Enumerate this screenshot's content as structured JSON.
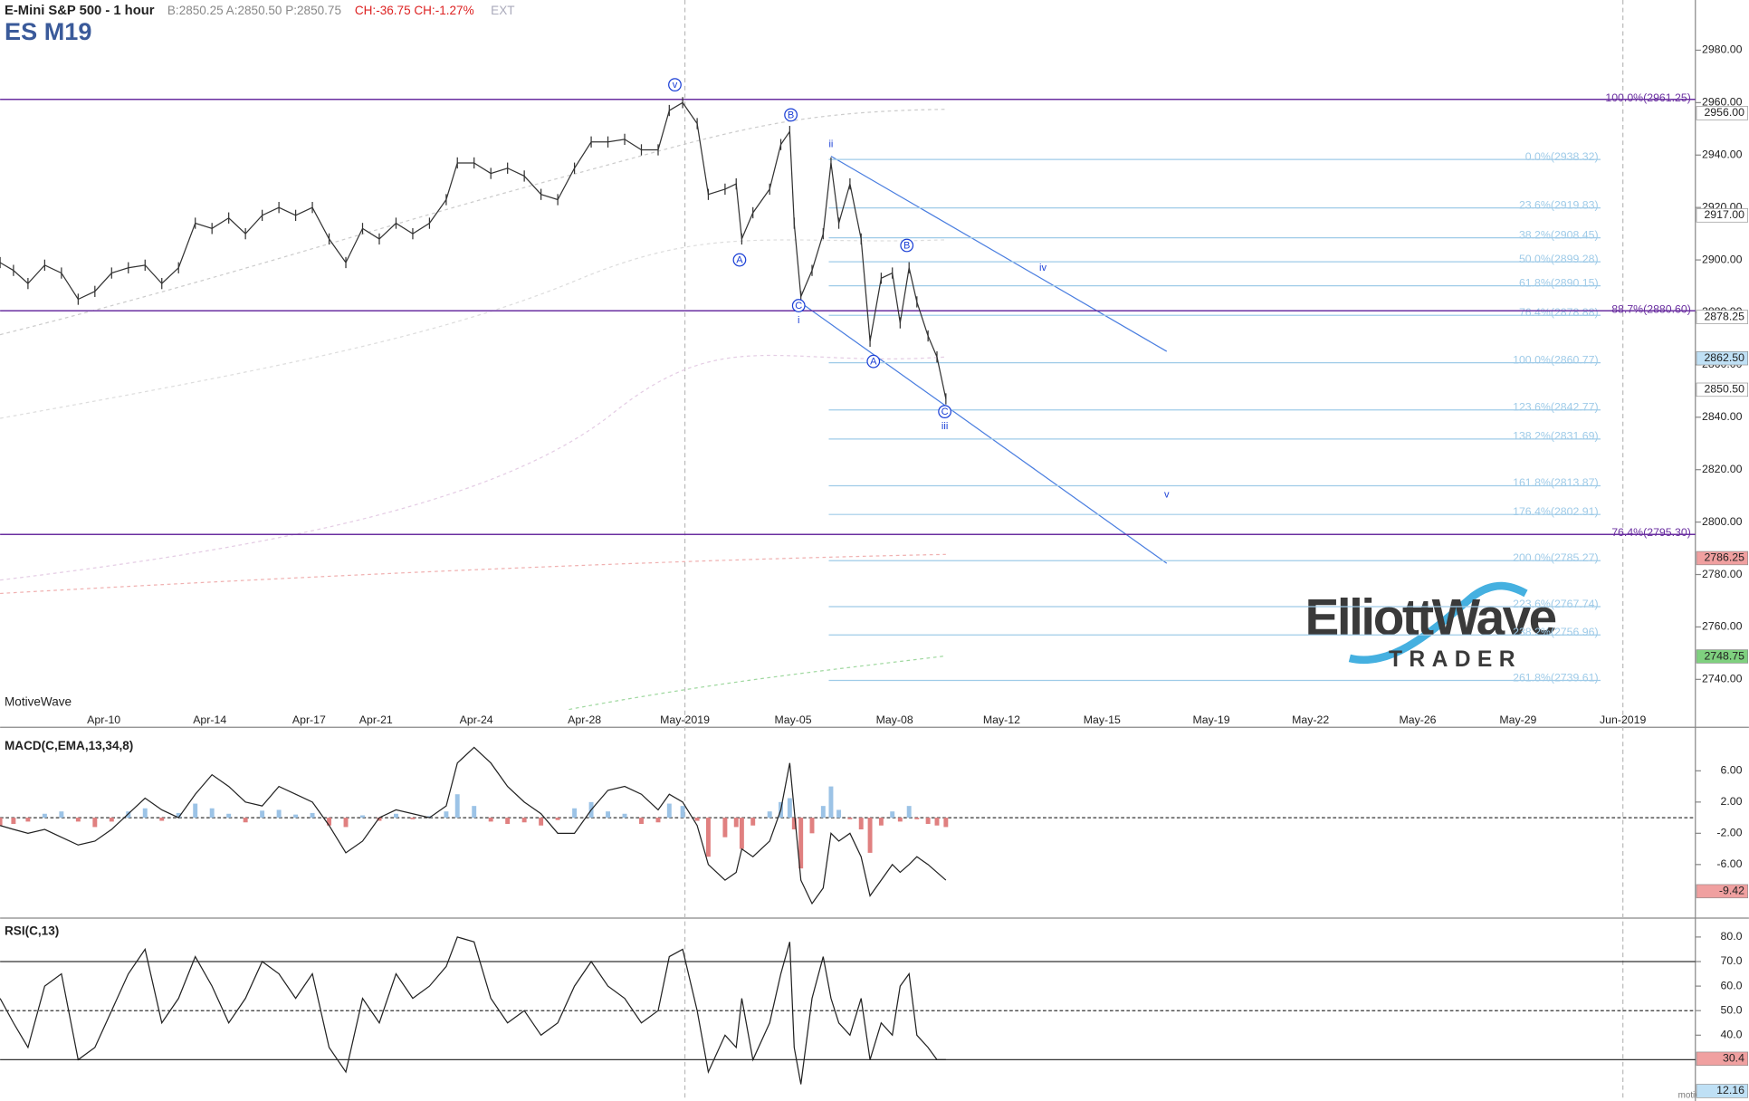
{
  "header": {
    "symbol_desc": "E-Mini S&P 500 - 1 hour",
    "quote": "B:2850.25 A:2850.50 P:2850.75",
    "change": "CH:-36.75 CH:-1.27%",
    "ext": "EXT",
    "ticker": "ES M19",
    "watermark": "MotiveWave",
    "footer": "motivewave.com",
    "logo_main": "ElliottWave",
    "logo_sub": "TRADER"
  },
  "chart_data": [
    {
      "type": "price",
      "color": "#333333",
      "x_tick_labels": [
        "Apr-10",
        "Apr-14",
        "Apr-17",
        "Apr-21",
        "Apr-24",
        "Apr-28",
        "May-2019",
        "May-05",
        "May-08",
        "May-12",
        "May-15",
        "May-19",
        "May-22",
        "May-26",
        "May-29",
        "Jun-2019"
      ],
      "ylim": [
        2728.1,
        2999.15
      ],
      "yticks": [
        {
          "value": 2740,
          "label": "2740.00"
        },
        {
          "value": 2760,
          "label": "2760.00"
        },
        {
          "value": 2780,
          "label": "2780.00"
        },
        {
          "value": 2800,
          "label": "2800.00"
        },
        {
          "value": 2820,
          "label": "2820.00"
        },
        {
          "value": 2840,
          "label": "2840.00"
        },
        {
          "value": 2860,
          "label": "2860.00"
        },
        {
          "value": 2880,
          "label": "2880.00"
        },
        {
          "value": 2900,
          "label": "2900.00"
        },
        {
          "value": 2920,
          "label": "2920.00"
        },
        {
          "value": 2940,
          "label": "2940.00"
        },
        {
          "value": 2960,
          "label": "2960.00"
        },
        {
          "value": 2980,
          "label": "2980.00"
        }
      ],
      "values": [
        2899,
        2896,
        2891,
        2898,
        2895,
        2885,
        2888,
        2895,
        2897,
        2898,
        2891,
        2897,
        2914,
        2912,
        2916,
        2910,
        2917,
        2920,
        2917,
        2920,
        2908,
        2899,
        2912,
        2908,
        2914,
        2910,
        2914,
        2923,
        2937,
        2937,
        2933,
        2935,
        2932,
        2925,
        2923,
        2935,
        2945,
        2945,
        2946,
        2942,
        2942,
        2957,
        2960,
        2952,
        2925,
        2927,
        2929,
        2908,
        2918,
        2927,
        2944,
        2949,
        2914,
        2886,
        2896,
        2910,
        2937,
        2914,
        2929,
        2908,
        2869,
        2893,
        2895,
        2876,
        2897,
        2884,
        2871,
        2863,
        2847
      ],
      "fib_color": "#9fcbe8",
      "fib_levels": [
        {
          "value": 2938.32,
          "label": "0.0%(2938.32)"
        },
        {
          "value": 2919.83,
          "label": "23.6%(2919.83)"
        },
        {
          "value": 2908.45,
          "label": "38.2%(2908.45)"
        },
        {
          "value": 2899.28,
          "label": "50.0%(2899.28)"
        },
        {
          "value": 2890.15,
          "label": "61.8%(2890.15)"
        },
        {
          "value": 2878.88,
          "label": "76.4%(2878.88)"
        },
        {
          "value": 2860.77,
          "label": "100.0%(2860.77)"
        },
        {
          "value": 2842.77,
          "label": "123.6%(2842.77)"
        },
        {
          "value": 2831.69,
          "label": "138.2%(2831.69)"
        },
        {
          "value": 2813.87,
          "label": "161.8%(2813.87)"
        },
        {
          "value": 2802.91,
          "label": "176.4%(2802.91)"
        },
        {
          "value": 2785.27,
          "label": "200.0%(2785.27)"
        },
        {
          "value": 2767.74,
          "label": "223.6%(2767.74)"
        },
        {
          "value": 2756.96,
          "label": "238.2%(2756.96)"
        },
        {
          "value": 2739.61,
          "label": "261.8%(2739.61)"
        }
      ],
      "retrace_color": "#6a2fa0",
      "retrace_levels": [
        {
          "value": 2961.25,
          "label": "100.0%(2961.25)"
        },
        {
          "value": 2880.6,
          "label": "88.7%(2880.60)"
        },
        {
          "value": 2795.3,
          "label": "76.4%(2795.30)"
        }
      ],
      "price_markers": [
        {
          "value": 2956,
          "label": "2956.00",
          "color": "#ffffff"
        },
        {
          "value": 2917,
          "label": "2917.00",
          "color": "#ffffff"
        },
        {
          "value": 2878.25,
          "label": "2878.25",
          "color": "#ffffff"
        },
        {
          "value": 2862.5,
          "label": "2862.50",
          "color": "#bfe0f5"
        },
        {
          "value": 2850.5,
          "label": "2850.50",
          "color": "#ffffff"
        },
        {
          "value": 2786.25,
          "label": "2786.25",
          "color": "#f0a0a0"
        },
        {
          "value": 2748.75,
          "label": "2748.75",
          "color": "#7fd07f"
        }
      ],
      "wave_color": "#1a3fd6",
      "wave_labels": [
        "v",
        "B",
        "A",
        "C",
        "i",
        "ii",
        "A",
        "B",
        "C",
        "iii",
        "iv",
        "v"
      ]
    },
    {
      "type": "macd",
      "title": "MACD(C,EMA,13,34,8)",
      "ylim": [
        -12.71,
        11
      ],
      "yticks": [
        {
          "value": 6,
          "label": "6.00"
        },
        {
          "value": 2,
          "label": "2.00"
        },
        {
          "value": -2,
          "label": "-2.00"
        },
        {
          "value": -6,
          "label": "-6.00"
        }
      ],
      "up_color": "#9cc3e6",
      "down_color": "#e08080",
      "line_color": "#222222",
      "histogram": [
        -1,
        -0.8,
        -0.5,
        0.5,
        0.8,
        -0.5,
        -1.2,
        -0.5,
        0.8,
        1.2,
        -0.4,
        0.6,
        1.8,
        1.2,
        0.5,
        -0.6,
        0.9,
        1.0,
        0.4,
        0.6,
        -1.0,
        -1.2,
        0.3,
        -0.4,
        0.5,
        -0.2,
        0.2,
        0.8,
        3.0,
        1.5,
        -0.5,
        -0.8,
        -0.6,
        -1.0,
        -0.3,
        1.2,
        2.0,
        0.8,
        0.5,
        -0.8,
        -0.6,
        1.8,
        1.5,
        -0.4,
        -5.0,
        -2.5,
        -1.2,
        -4.0,
        -1.0,
        0.8,
        2.0,
        2.5,
        -1.5,
        -6.5,
        -2.0,
        1.5,
        4.0,
        1.0,
        -0.2,
        -1.5,
        -4.5,
        -1.0,
        0.8,
        -0.5,
        1.5,
        -0.2,
        -0.8,
        -1.0,
        -1.2
      ],
      "values": [
        -1,
        -1.5,
        -2,
        -1.5,
        -2.5,
        -3.5,
        -3,
        -1.5,
        0.5,
        2.5,
        1,
        0,
        3,
        5.5,
        4,
        2,
        1.5,
        4,
        3,
        2,
        -1,
        -4.5,
        -3,
        0,
        1,
        0.5,
        0,
        1.5,
        7,
        9,
        7,
        4,
        2,
        0.5,
        -2,
        -2,
        1,
        3.5,
        4,
        3,
        1,
        3,
        2,
        -1,
        -6,
        -8,
        -7,
        -4,
        -5,
        -3,
        1,
        7,
        1,
        -8,
        -11,
        -9,
        -2,
        -3,
        -2,
        -5,
        -10,
        -8,
        -6,
        -7,
        -6,
        -5,
        -6,
        -7,
        -8
      ],
      "marker": {
        "value": -9.42,
        "label": "-9.42",
        "color": "#f0a0a0"
      }
    },
    {
      "type": "rsi",
      "title": "RSI(C,13)",
      "ylim": [
        14.09,
        86.36
      ],
      "yticks": [
        {
          "value": 80,
          "label": "80.0"
        },
        {
          "value": 70,
          "label": "70.0"
        },
        {
          "value": 60,
          "label": "60.0"
        },
        {
          "value": 50,
          "label": "50.0"
        },
        {
          "value": 40,
          "label": "40.0"
        }
      ],
      "levels": [
        70,
        50,
        30
      ],
      "line_color": "#222222",
      "values": [
        55,
        45,
        35,
        60,
        65,
        30,
        35,
        50,
        65,
        75,
        45,
        55,
        72,
        60,
        45,
        55,
        70,
        65,
        55,
        65,
        35,
        25,
        55,
        45,
        65,
        55,
        60,
        68,
        80,
        78,
        55,
        45,
        50,
        40,
        45,
        60,
        70,
        60,
        55,
        45,
        50,
        72,
        75,
        50,
        25,
        40,
        35,
        55,
        30,
        45,
        65,
        78,
        35,
        20,
        55,
        72,
        55,
        45,
        40,
        55,
        30,
        45,
        40,
        60,
        65,
        40,
        35,
        30,
        30
      ],
      "markers": [
        {
          "value": 30.4,
          "label": "30.4",
          "color": "#f0a0a0"
        },
        {
          "value": 12.16,
          "label": "12.16",
          "color": "#bfe0f5"
        }
      ]
    }
  ]
}
